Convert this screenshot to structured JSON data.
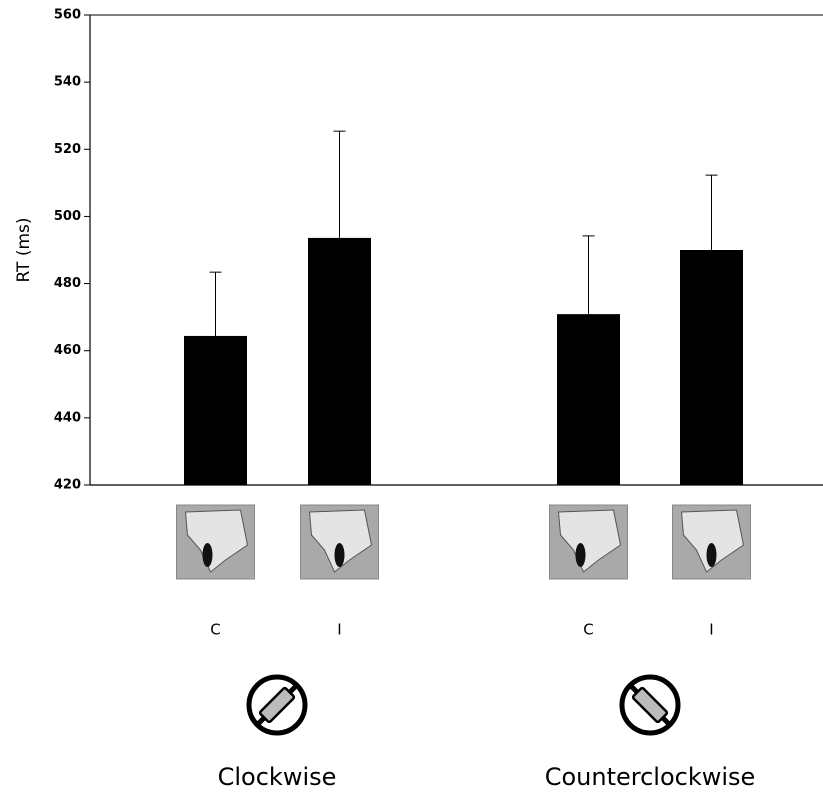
{
  "chart_data": {
    "type": "bar",
    "y_label": "RT (ms)",
    "categories": [
      "C",
      "I",
      "C",
      "I"
    ],
    "groups": [
      "Clockwise",
      "Counterclockwise"
    ],
    "values": [
      464.4,
      493.6,
      470.9,
      490.0
    ],
    "errors": [
      19.0,
      31.8,
      23.3,
      22.3
    ],
    "color": "#000000",
    "ylim": [
      420,
      560
    ],
    "yticks": [
      420,
      440,
      460,
      480,
      500,
      520,
      540,
      560
    ]
  }
}
